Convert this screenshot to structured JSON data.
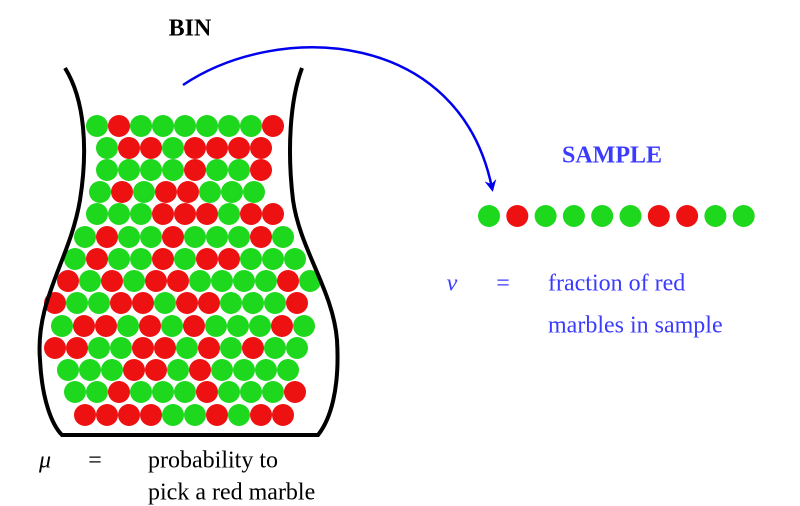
{
  "bin": {
    "title": "BIN"
  },
  "sample": {
    "title": "SAMPLE",
    "marbles": [
      "#1ed81e",
      "#ee1111",
      "#1ed81e",
      "#1ed81e",
      "#1ed81e",
      "#1ed81e",
      "#ee1111",
      "#ee1111",
      "#1ed81e",
      "#1ed81e"
    ]
  },
  "nu": {
    "symbol": "ν",
    "equals": "=",
    "lines": [
      "fraction of red",
      "marbles in sample"
    ]
  },
  "mu": {
    "symbol": "μ",
    "equals": "=",
    "lines": [
      "probability to",
      "pick a red marble"
    ]
  }
}
